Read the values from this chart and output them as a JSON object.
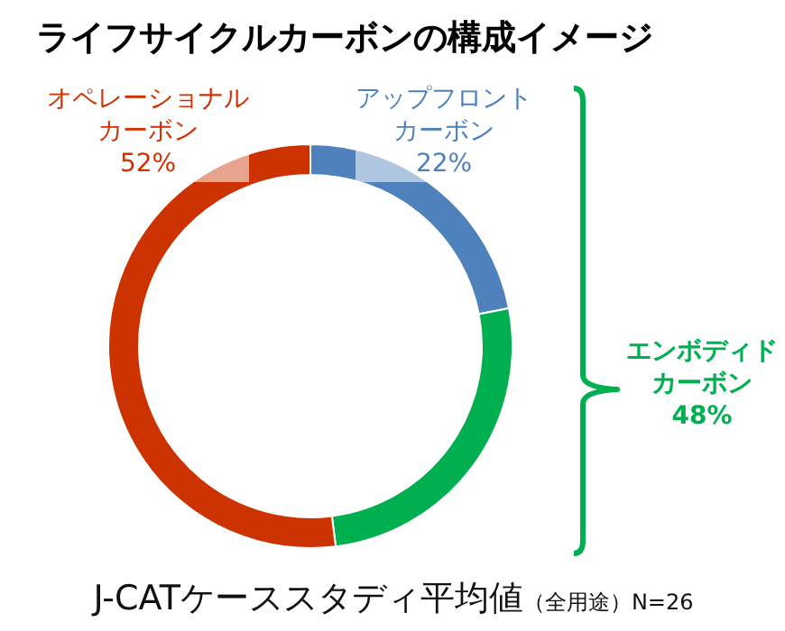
{
  "chart_data": {
    "type": "donut",
    "title": "ライフサイクルカーボンの構成イメージ",
    "categories": [
      "アップフロントカーボン",
      null,
      "オペレーショナルカーボン"
    ],
    "values": [
      22,
      26,
      52
    ],
    "colors": [
      "#4f81bd",
      "#00b050",
      "#cc3300"
    ],
    "value_labels": [
      "22%",
      null,
      "52%"
    ],
    "annotations": [
      "エンボディドカーボン\n48%",
      "J-CATケーススタディ平均値",
      "（全用途）N=26"
    ]
  }
}
